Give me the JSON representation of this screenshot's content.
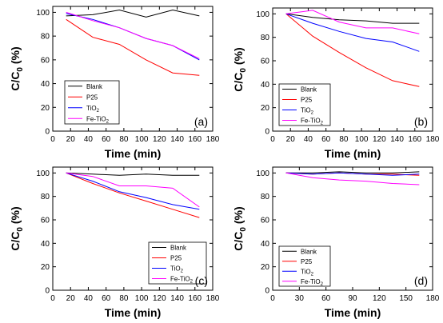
{
  "chart_data": [
    {
      "type": "line",
      "panel_label": "(a)",
      "xlabel": "Time (min)",
      "ylabel": "C/C",
      "ylabel_sub": "0",
      "ylabel_suffix": " (%)",
      "xlim": [
        0,
        180
      ],
      "ylim": [
        0,
        105
      ],
      "xticks": [
        0,
        20,
        40,
        60,
        80,
        100,
        120,
        140,
        160,
        180
      ],
      "yticks": [
        0,
        20,
        40,
        60,
        80,
        100
      ],
      "legend_position": "bottom-left",
      "series": [
        {
          "name": "Blank",
          "color": "#000000",
          "x": [
            15,
            45,
            75,
            105,
            135,
            165
          ],
          "y": [
            97,
            98,
            102,
            96,
            102,
            97
          ]
        },
        {
          "name": "P25",
          "color": "#ff0000",
          "x": [
            15,
            45,
            75,
            105,
            135,
            165
          ],
          "y": [
            94,
            79,
            73,
            60,
            49,
            47
          ]
        },
        {
          "name": "TiO",
          "name_sub": "2",
          "color": "#0000ff",
          "x": [
            15,
            45,
            75,
            105,
            135,
            165
          ],
          "y": [
            99,
            94,
            87,
            78,
            72,
            60
          ]
        },
        {
          "name": "Fe-TiO",
          "name_sub": "2",
          "color": "#ff00ff",
          "x": [
            15,
            45,
            75,
            105,
            135,
            165
          ],
          "y": [
            100,
            93,
            87,
            78,
            72,
            61
          ]
        }
      ]
    },
    {
      "type": "line",
      "panel_label": "(b)",
      "xlabel": "Time (min)",
      "ylabel": "C/C",
      "ylabel_sub": "0",
      "ylabel_suffix": " (%)",
      "xlim": [
        0,
        180
      ],
      "ylim": [
        0,
        105
      ],
      "xticks": [
        0,
        20,
        40,
        60,
        80,
        100,
        120,
        140,
        160,
        180
      ],
      "yticks": [
        0,
        20,
        40,
        60,
        80,
        100
      ],
      "legend_position": "bottom-left",
      "series": [
        {
          "name": "Blank",
          "color": "#000000",
          "x": [
            15,
            45,
            75,
            105,
            135,
            165
          ],
          "y": [
            100,
            97,
            95,
            94,
            92,
            92
          ]
        },
        {
          "name": "P25",
          "color": "#ff0000",
          "x": [
            15,
            45,
            75,
            105,
            135,
            165
          ],
          "y": [
            100,
            81,
            67,
            54,
            43,
            38
          ]
        },
        {
          "name": "TiO",
          "name_sub": "2",
          "color": "#0000ff",
          "x": [
            15,
            45,
            75,
            105,
            135,
            165
          ],
          "y": [
            100,
            92,
            85,
            79,
            76,
            68
          ]
        },
        {
          "name": "Fe-TiO",
          "name_sub": "2",
          "color": "#ff00ff",
          "x": [
            15,
            45,
            75,
            105,
            135,
            165
          ],
          "y": [
            100,
            103,
            93,
            88,
            88,
            83
          ]
        }
      ]
    },
    {
      "type": "line",
      "panel_label": "(c)",
      "xlabel": "Time (min)",
      "ylabel": "C/C",
      "ylabel_sub": "0",
      "ylabel_suffix": " (%)",
      "xlim": [
        0,
        180
      ],
      "ylim": [
        0,
        105
      ],
      "xticks": [
        0,
        20,
        40,
        60,
        80,
        100,
        120,
        140,
        160,
        180
      ],
      "yticks": [
        0,
        20,
        40,
        60,
        80,
        100
      ],
      "legend_position": "bottom-right",
      "series": [
        {
          "name": "Blank",
          "color": "#000000",
          "x": [
            15,
            45,
            75,
            105,
            135,
            165
          ],
          "y": [
            100,
            99,
            98,
            99,
            98,
            98
          ]
        },
        {
          "name": "P25",
          "color": "#ff0000",
          "x": [
            15,
            45,
            75,
            105,
            135,
            165
          ],
          "y": [
            100,
            91,
            83,
            76,
            69,
            62
          ]
        },
        {
          "name": "TiO",
          "name_sub": "2",
          "color": "#0000ff",
          "x": [
            15,
            45,
            75,
            105,
            135,
            165
          ],
          "y": [
            100,
            93,
            84,
            79,
            73,
            69
          ]
        },
        {
          "name": "Fe-TiO",
          "name_sub": "2",
          "color": "#ff00ff",
          "x": [
            15,
            45,
            75,
            105,
            135,
            165
          ],
          "y": [
            100,
            97,
            89,
            89,
            87,
            71
          ]
        }
      ]
    },
    {
      "type": "line",
      "panel_label": "(d)",
      "xlabel": "Time (min)",
      "ylabel": "C/C",
      "ylabel_sub": "0",
      "ylabel_suffix": " (%)",
      "xlim": [
        0,
        180
      ],
      "ylim": [
        0,
        105
      ],
      "xticks": [
        0,
        30,
        60,
        90,
        120,
        150,
        180
      ],
      "yticks": [
        0,
        20,
        40,
        60,
        80,
        100
      ],
      "legend_position": "bottom-left",
      "series": [
        {
          "name": "Blank",
          "color": "#000000",
          "x": [
            15,
            45,
            75,
            105,
            135,
            165
          ],
          "y": [
            100,
            100,
            101,
            100,
            100,
            101
          ]
        },
        {
          "name": "P25",
          "color": "#ff0000",
          "x": [
            15,
            45,
            75,
            105,
            135,
            165
          ],
          "y": [
            100,
            99,
            100,
            99,
            99,
            98
          ]
        },
        {
          "name": "TiO",
          "name_sub": "2",
          "color": "#0000ff",
          "x": [
            15,
            45,
            75,
            105,
            135,
            165
          ],
          "y": [
            100,
            99,
            100,
            99,
            98,
            99
          ]
        },
        {
          "name": "Fe-TiO",
          "name_sub": "2",
          "color": "#ff00ff",
          "x": [
            15,
            45,
            75,
            105,
            135,
            165
          ],
          "y": [
            100,
            96,
            94,
            93,
            91,
            90
          ]
        }
      ]
    }
  ]
}
